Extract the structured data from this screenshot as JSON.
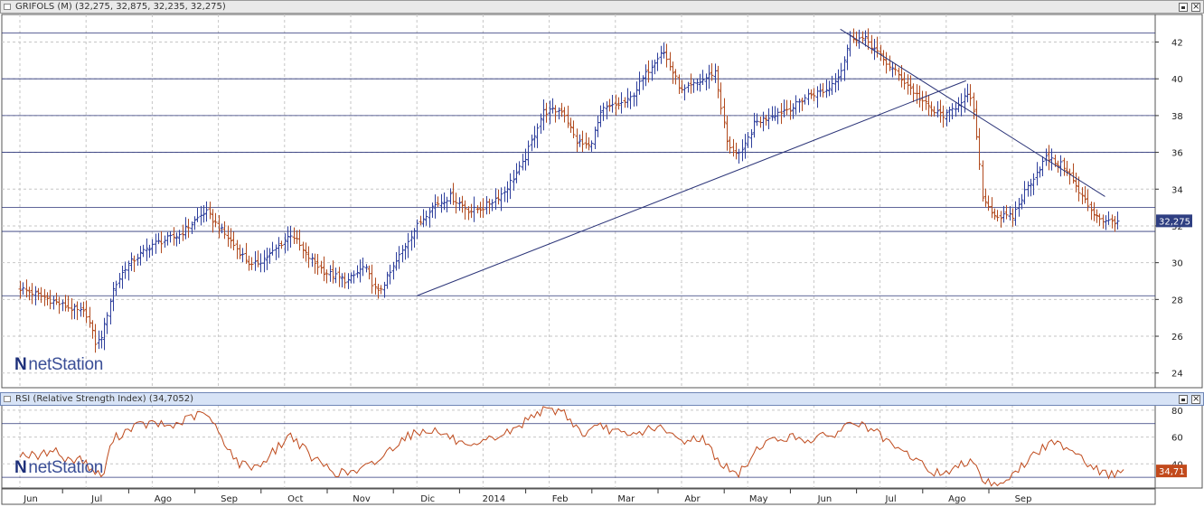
{
  "window": {
    "title": "GRIFOLS (M) (32,275, 32,875, 32,235, 32,275)",
    "rsi_title": "RSI (Relative Strength Index) (34,7052)"
  },
  "watermark": "netStation",
  "colors": {
    "up": "#2e3f9c",
    "down": "#b14a1e",
    "hline": "#2b3478",
    "grid": "#c6c6c6",
    "rsi_line": "#bf4a1c",
    "price_tag": "#2f3f82",
    "rsi_tag": "#c24a1c"
  },
  "chart_data": [
    {
      "type": "ohlc",
      "title": "GRIFOLS (M) (32,275, 32,875, 32,235, 32,275)",
      "xlabel": "",
      "ylabel": "",
      "ylim": [
        23.2,
        43.5
      ],
      "y_ticks": [
        "24",
        "26",
        "28",
        "30",
        "32",
        "34",
        "36",
        "38",
        "40",
        "42"
      ],
      "x_ticks": [
        "Jun",
        "Jul",
        "Ago",
        "Sep",
        "Oct",
        "Nov",
        "Dic",
        "2014",
        "Feb",
        "Mar",
        "Abr",
        "May",
        "Jun",
        "Jul",
        "Ago",
        "Sep"
      ],
      "grid": true,
      "last_value_label": "32,275",
      "last_value": 32.275,
      "horizontal_levels": [
        42.5,
        40.0,
        38.0,
        36.0,
        33.0,
        31.7,
        28.2
      ],
      "trendlines": [
        {
          "from": {
            "month_index": 6.0,
            "value": 28.2
          },
          "to": {
            "month_index": 14.3,
            "value": 39.9
          }
        },
        {
          "from": {
            "month_index": 12.4,
            "value": 42.7
          },
          "to": {
            "month_index": 16.4,
            "value": 33.6
          }
        }
      ],
      "path_anchors": [
        [
          0.0,
          28.6
        ],
        [
          0.3,
          28.2
        ],
        [
          0.7,
          27.6
        ],
        [
          1.0,
          27.2
        ],
        [
          1.15,
          25.5
        ],
        [
          1.25,
          26.2
        ],
        [
          1.4,
          28.5
        ],
        [
          1.6,
          29.8
        ],
        [
          2.0,
          31.0
        ],
        [
          2.4,
          31.5
        ],
        [
          2.8,
          32.8
        ],
        [
          3.1,
          31.5
        ],
        [
          3.5,
          29.8
        ],
        [
          3.8,
          30.5
        ],
        [
          4.1,
          31.6
        ],
        [
          4.3,
          30.5
        ],
        [
          4.6,
          29.5
        ],
        [
          4.95,
          29.0
        ],
        [
          5.2,
          29.8
        ],
        [
          5.4,
          28.3
        ],
        [
          5.6,
          29.5
        ],
        [
          5.9,
          31.5
        ],
        [
          6.2,
          33.0
        ],
        [
          6.5,
          33.6
        ],
        [
          6.8,
          32.8
        ],
        [
          7.0,
          33.0
        ],
        [
          7.3,
          33.8
        ],
        [
          7.6,
          35.4
        ],
        [
          7.9,
          38.2
        ],
        [
          8.2,
          38.3
        ],
        [
          8.4,
          36.6
        ],
        [
          8.6,
          36.3
        ],
        [
          8.8,
          38.3
        ],
        [
          9.2,
          38.8
        ],
        [
          9.5,
          40.5
        ],
        [
          9.7,
          41.6
        ],
        [
          10.0,
          39.3
        ],
        [
          10.3,
          39.9
        ],
        [
          10.5,
          40.4
        ],
        [
          10.7,
          36.2
        ],
        [
          10.9,
          35.9
        ],
        [
          11.1,
          37.6
        ],
        [
          11.4,
          38.1
        ],
        [
          11.7,
          38.5
        ],
        [
          11.9,
          39.1
        ],
        [
          12.2,
          39.4
        ],
        [
          12.4,
          40.4
        ],
        [
          12.55,
          42.3
        ],
        [
          12.8,
          42.1
        ],
        [
          13.0,
          41.2
        ],
        [
          13.3,
          40.1
        ],
        [
          13.6,
          38.9
        ],
        [
          13.8,
          38.2
        ],
        [
          14.0,
          38.0
        ],
        [
          14.3,
          39.1
        ],
        [
          14.4,
          38.6
        ],
        [
          14.55,
          33.5
        ],
        [
          14.75,
          32.5
        ],
        [
          15.0,
          32.5
        ],
        [
          15.2,
          34.0
        ],
        [
          15.5,
          35.7
        ],
        [
          15.8,
          35.2
        ],
        [
          16.0,
          33.8
        ],
        [
          16.2,
          32.8
        ],
        [
          16.4,
          32.2
        ],
        [
          16.6,
          32.3
        ]
      ]
    },
    {
      "type": "line",
      "title": "RSI (Relative Strength Index) (34,7052)",
      "xlabel": "",
      "ylabel": "",
      "ylim": [
        22,
        84
      ],
      "y_ticks": [
        "40",
        "60",
        "80"
      ],
      "reference_levels": [
        70,
        30
      ],
      "last_value_label": "34,71",
      "last_value": 34.71,
      "path_anchors": [
        [
          0.0,
          48
        ],
        [
          0.3,
          45
        ],
        [
          0.5,
          52
        ],
        [
          0.7,
          42
        ],
        [
          0.9,
          45
        ],
        [
          1.1,
          35
        ],
        [
          1.25,
          30
        ],
        [
          1.4,
          58
        ],
        [
          1.7,
          68
        ],
        [
          2.0,
          70
        ],
        [
          2.3,
          68
        ],
        [
          2.6,
          75
        ],
        [
          2.8,
          78
        ],
        [
          3.0,
          64
        ],
        [
          3.3,
          40
        ],
        [
          3.6,
          38
        ],
        [
          4.1,
          62
        ],
        [
          4.4,
          45
        ],
        [
          4.8,
          33
        ],
        [
          5.1,
          34
        ],
        [
          5.4,
          42
        ],
        [
          5.8,
          60
        ],
        [
          6.2,
          66
        ],
        [
          6.5,
          60
        ],
        [
          6.8,
          50
        ],
        [
          7.1,
          58
        ],
        [
          7.5,
          66
        ],
        [
          7.8,
          79
        ],
        [
          8.2,
          80
        ],
        [
          8.5,
          62
        ],
        [
          8.8,
          68
        ],
        [
          9.2,
          60
        ],
        [
          9.6,
          68
        ],
        [
          10.0,
          57
        ],
        [
          10.3,
          60
        ],
        [
          10.6,
          40
        ],
        [
          10.85,
          31
        ],
        [
          11.2,
          55
        ],
        [
          11.6,
          60
        ],
        [
          12.0,
          58
        ],
        [
          12.4,
          64
        ],
        [
          12.55,
          72
        ],
        [
          12.9,
          65
        ],
        [
          13.2,
          52
        ],
        [
          13.5,
          45
        ],
        [
          13.8,
          33
        ],
        [
          14.1,
          35
        ],
        [
          14.4,
          45
        ],
        [
          14.55,
          28
        ],
        [
          14.75,
          25
        ],
        [
          15.0,
          31
        ],
        [
          15.3,
          46
        ],
        [
          15.6,
          56
        ],
        [
          15.9,
          52
        ],
        [
          16.2,
          38
        ],
        [
          16.4,
          32
        ],
        [
          16.55,
          33
        ],
        [
          16.7,
          35
        ]
      ]
    }
  ]
}
